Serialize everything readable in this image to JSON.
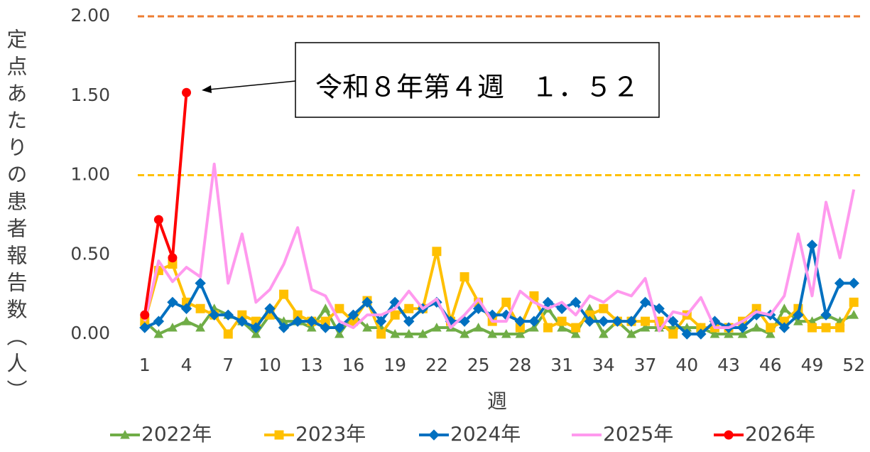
{
  "chart_data": {
    "type": "line",
    "y_label": "定点あたりの患者報告数（人）",
    "x_label": "週",
    "annotation": "令和８年第４週　１．５２",
    "x": [
      1,
      2,
      3,
      4,
      5,
      6,
      7,
      8,
      9,
      10,
      11,
      12,
      13,
      14,
      15,
      16,
      17,
      18,
      19,
      20,
      21,
      22,
      23,
      24,
      25,
      26,
      27,
      28,
      29,
      30,
      31,
      32,
      33,
      34,
      35,
      36,
      37,
      38,
      39,
      40,
      41,
      42,
      43,
      44,
      45,
      46,
      47,
      48,
      49,
      50,
      51,
      52
    ],
    "xlim": [
      0.5,
      52.5
    ],
    "xticks": [
      1,
      4,
      7,
      10,
      13,
      16,
      19,
      22,
      25,
      28,
      31,
      34,
      37,
      40,
      43,
      46,
      49,
      52
    ],
    "ylim": [
      0,
      2
    ],
    "yticks": [
      {
        "value": 0,
        "label": "0.00"
      },
      {
        "value": 0.5,
        "label": "0.50"
      },
      {
        "value": 1,
        "label": "1.00"
      },
      {
        "value": 1.5,
        "label": "1.50"
      },
      {
        "value": 2,
        "label": "2.00"
      }
    ],
    "reference_lines": [
      {
        "value": 1,
        "color": "#ffc000"
      },
      {
        "value": 2,
        "color": "#ed7d31"
      }
    ],
    "legend": "bottom",
    "series": [
      {
        "name": "2022年",
        "color": "#70ad47",
        "marker": "triangle",
        "values": [
          0.08,
          0,
          0.04,
          0.08,
          0.04,
          0.16,
          0.12,
          0.08,
          0,
          0.12,
          0.08,
          0.08,
          0.04,
          0.16,
          0,
          0.12,
          0.04,
          0.04,
          0,
          0,
          0,
          0.04,
          0.04,
          0,
          0.04,
          0,
          0,
          0,
          0.04,
          0.16,
          0.04,
          0,
          0.16,
          0,
          0.08,
          0,
          0.04,
          0.04,
          0.04,
          0.04,
          0.04,
          0,
          0,
          0,
          0.04,
          0,
          0.16,
          0.08,
          0.08,
          0.12,
          0.08,
          0.12
        ]
      },
      {
        "name": "2023年",
        "color": "#ffc000",
        "marker": "square",
        "values": [
          0.08,
          0.4,
          0.44,
          0.2,
          0.16,
          0.12,
          0,
          0.12,
          0.08,
          0.12,
          0.25,
          0.12,
          0.08,
          0.08,
          0.16,
          0.08,
          0.21,
          0,
          0.12,
          0.16,
          0.16,
          0.52,
          0.08,
          0.36,
          0.2,
          0.08,
          0.2,
          0.04,
          0.24,
          0.04,
          0.08,
          0.04,
          0.12,
          0.16,
          0.08,
          0.08,
          0.08,
          0.08,
          0,
          0.12,
          0.04,
          0.04,
          0.04,
          0.08,
          0.16,
          0.04,
          0.08,
          0.16,
          0.04,
          0.04,
          0.04,
          0.2
        ]
      },
      {
        "name": "2024年",
        "color": "#0070c0",
        "marker": "diamond",
        "values": [
          0.04,
          0.08,
          0.2,
          0.16,
          0.32,
          0.12,
          0.12,
          0.08,
          0.04,
          0.16,
          0.04,
          0.08,
          0.08,
          0.04,
          0.04,
          0.12,
          0.2,
          0.08,
          0.2,
          0.08,
          0.16,
          0.2,
          0.08,
          0.08,
          0.16,
          0.12,
          0.12,
          0.08,
          0.08,
          0.2,
          0.16,
          0.2,
          0.08,
          0.08,
          0.08,
          0.08,
          0.2,
          0.16,
          0.08,
          0,
          0,
          0.08,
          0.04,
          0.04,
          0.12,
          0.12,
          0.04,
          0.12,
          0.56,
          0.12,
          0.32,
          0.32
        ]
      },
      {
        "name": "2025年",
        "color": "#ff99ee",
        "marker": "none",
        "values": [
          0.08,
          0.46,
          0.33,
          0.42,
          0.36,
          1.07,
          0.32,
          0.63,
          0.2,
          0.28,
          0.44,
          0.67,
          0.28,
          0.24,
          0.08,
          0.04,
          0.12,
          0.12,
          0.16,
          0.27,
          0.16,
          0.22,
          0.04,
          0.12,
          0.22,
          0.08,
          0.08,
          0.27,
          0.2,
          0.16,
          0.2,
          0.12,
          0.24,
          0.2,
          0.27,
          0.24,
          0.35,
          0.02,
          0.14,
          0.12,
          0.23,
          0.04,
          0.04,
          0.08,
          0.14,
          0.12,
          0.24,
          0.63,
          0.24,
          0.83,
          0.48,
          0.91
        ]
      },
      {
        "name": "2026年",
        "color": "#ff0000",
        "marker": "circle",
        "values": [
          0.12,
          0.72,
          0.48,
          1.52,
          null,
          null,
          null,
          null,
          null,
          null,
          null,
          null,
          null,
          null,
          null,
          null,
          null,
          null,
          null,
          null,
          null,
          null,
          null,
          null,
          null,
          null,
          null,
          null,
          null,
          null,
          null,
          null,
          null,
          null,
          null,
          null,
          null,
          null,
          null,
          null,
          null,
          null,
          null,
          null,
          null,
          null,
          null,
          null,
          null,
          null,
          null,
          null
        ]
      }
    ]
  }
}
